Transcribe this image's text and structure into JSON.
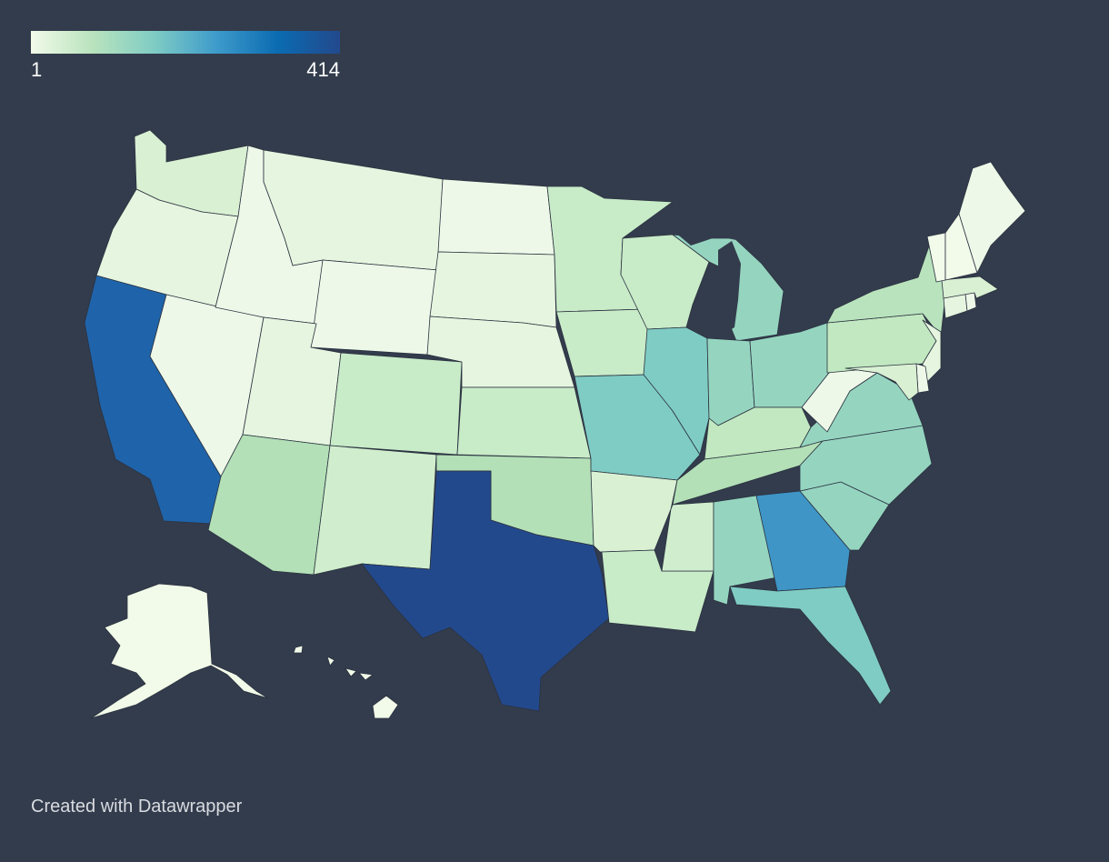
{
  "legend": {
    "min_label": "1",
    "max_label": "414",
    "min_value": 1,
    "max_value": 414,
    "gradient_colors": [
      "#f2fae9",
      "#b9e3bd",
      "#7fccc4",
      "#3e9bcb",
      "#0b6bb1",
      "#23498d"
    ]
  },
  "credit": "Created with Datawrapper",
  "colors": {
    "background": "#333c4c",
    "state_border": "#2b3240",
    "lake": "#333c4c"
  },
  "states": [
    {
      "abbr": "WA",
      "fill": "#d9f0d3"
    },
    {
      "abbr": "OR",
      "fill": "#e6f5df"
    },
    {
      "abbr": "CA",
      "fill": "#1f64aa"
    },
    {
      "abbr": "NV",
      "fill": "#eef8e8"
    },
    {
      "abbr": "ID",
      "fill": "#eef8e8"
    },
    {
      "abbr": "MT",
      "fill": "#e6f5df"
    },
    {
      "abbr": "WY",
      "fill": "#eef8e8"
    },
    {
      "abbr": "UT",
      "fill": "#e6f5df"
    },
    {
      "abbr": "AZ",
      "fill": "#b3e0b7"
    },
    {
      "abbr": "CO",
      "fill": "#c8ebc8"
    },
    {
      "abbr": "NM",
      "fill": "#d0eecd"
    },
    {
      "abbr": "ND",
      "fill": "#eef8e8"
    },
    {
      "abbr": "SD",
      "fill": "#e6f5df"
    },
    {
      "abbr": "NE",
      "fill": "#e6f5df"
    },
    {
      "abbr": "KS",
      "fill": "#c8ebc8"
    },
    {
      "abbr": "OK",
      "fill": "#b3e0b7"
    },
    {
      "abbr": "TX",
      "fill": "#23498d"
    },
    {
      "abbr": "MN",
      "fill": "#c8ebc8"
    },
    {
      "abbr": "IA",
      "fill": "#c8ebc8"
    },
    {
      "abbr": "MO",
      "fill": "#7fccc4"
    },
    {
      "abbr": "AR",
      "fill": "#d9f0d3"
    },
    {
      "abbr": "LA",
      "fill": "#c8ebc8"
    },
    {
      "abbr": "WI",
      "fill": "#c8ebc8"
    },
    {
      "abbr": "IL",
      "fill": "#7fccc4"
    },
    {
      "abbr": "MI",
      "fill": "#95d5c0"
    },
    {
      "abbr": "IN",
      "fill": "#95d5c0"
    },
    {
      "abbr": "OH",
      "fill": "#95d5c0"
    },
    {
      "abbr": "KY",
      "fill": "#c1e8c0"
    },
    {
      "abbr": "TN",
      "fill": "#b3e0b7"
    },
    {
      "abbr": "MS",
      "fill": "#d0eecd"
    },
    {
      "abbr": "AL",
      "fill": "#95d5c0"
    },
    {
      "abbr": "GA",
      "fill": "#3e95c6"
    },
    {
      "abbr": "FL",
      "fill": "#7fccc4"
    },
    {
      "abbr": "SC",
      "fill": "#95d5c0"
    },
    {
      "abbr": "NC",
      "fill": "#95d5c0"
    },
    {
      "abbr": "VA",
      "fill": "#95d5c0"
    },
    {
      "abbr": "WV",
      "fill": "#eef8e8"
    },
    {
      "abbr": "PA",
      "fill": "#c1e8c0"
    },
    {
      "abbr": "NY",
      "fill": "#b9e3bd"
    },
    {
      "abbr": "NJ",
      "fill": "#e6f5df"
    },
    {
      "abbr": "DE",
      "fill": "#eef8e8"
    },
    {
      "abbr": "MD",
      "fill": "#d9f0d3"
    },
    {
      "abbr": "CT",
      "fill": "#e6f5df"
    },
    {
      "abbr": "RI",
      "fill": "#eef8e8"
    },
    {
      "abbr": "MA",
      "fill": "#d9f0d3"
    },
    {
      "abbr": "VT",
      "fill": "#f2fae9"
    },
    {
      "abbr": "NH",
      "fill": "#f2fae9"
    },
    {
      "abbr": "ME",
      "fill": "#eef8e8"
    },
    {
      "abbr": "AK",
      "fill": "#f2fae9"
    },
    {
      "abbr": "HI",
      "fill": "#f2fae9"
    }
  ]
}
